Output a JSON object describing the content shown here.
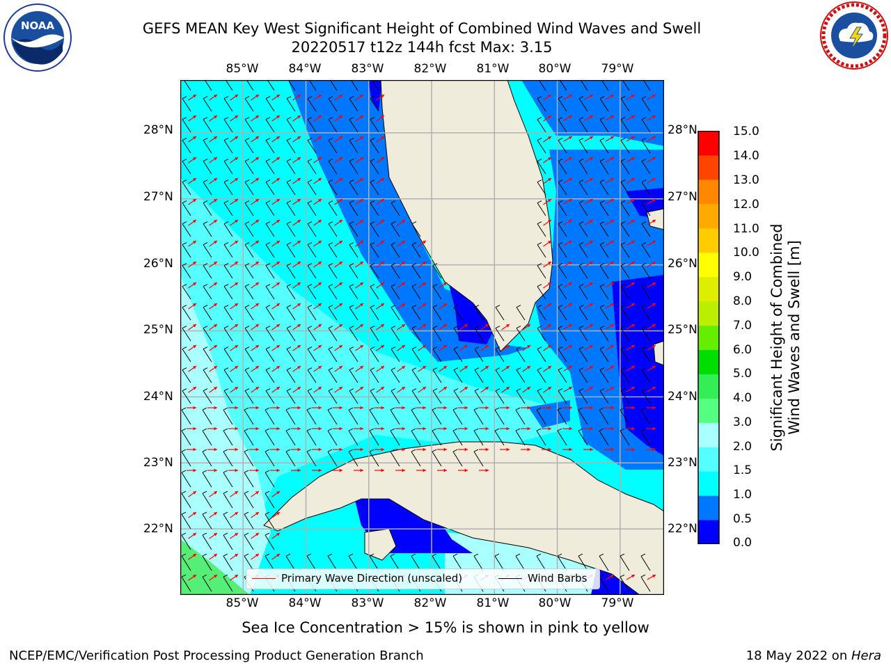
{
  "header": {
    "title_line1": "GEFS MEAN Key West Significant Height of Combined Wind Waves and Swell",
    "title_line2": "20220517 t12z 144h fcst   Max: 3.15"
  },
  "logos": {
    "left": {
      "name": "noaa-logo",
      "text": "NOAA",
      "ring_text": "NATIONAL OCEANIC AND ATMOSPHERIC ADMINISTRATION · U.S. DEPARTMENT OF COMMERCE"
    },
    "right": {
      "name": "nws-logo",
      "ring_text": "NATIONAL WEATHER SERVICE"
    }
  },
  "map": {
    "longitude_labels": [
      "85°W",
      "84°W",
      "83°W",
      "82°W",
      "81°W",
      "80°W",
      "79°W"
    ],
    "latitude_labels": [
      "28°N",
      "27°N",
      "26°N",
      "25°N",
      "24°N",
      "23°N",
      "22°N"
    ],
    "lon_range": [
      -86.0,
      -78.3
    ],
    "lat_range": [
      21.0,
      28.8
    ],
    "colors": {
      "land": "#efecdc",
      "coastline": "#000000",
      "gridlines": "#b0b0b0",
      "wave_arrow": "#ff0000",
      "wind_barb": "#000000"
    },
    "legend": {
      "wave_label": "Primary Wave Direction (unscaled)",
      "wind_label": "Wind Barbs",
      "wave_color": "#ff0000",
      "wind_color": "#000000"
    }
  },
  "colorbar": {
    "label_line1": "Significant Height of Combined",
    "label_line2": "Wind Waves and Swell [m]",
    "ticks": [
      "15.0",
      "14.0",
      "13.0",
      "12.0",
      "11.0",
      "10.0",
      "9.0",
      "8.0",
      "7.0",
      "6.0",
      "5.0",
      "4.0",
      "3.0",
      "2.0",
      "1.5",
      "1.0",
      "0.5",
      "0.0"
    ],
    "bins": [
      {
        "from": 0.0,
        "to": 0.5,
        "color": "#0000ff"
      },
      {
        "from": 0.5,
        "to": 1.0,
        "color": "#0077ff"
      },
      {
        "from": 1.0,
        "to": 1.5,
        "color": "#00ffff"
      },
      {
        "from": 1.5,
        "to": 2.0,
        "color": "#55ffff"
      },
      {
        "from": 2.0,
        "to": 3.0,
        "color": "#aaffff"
      },
      {
        "from": 3.0,
        "to": 4.0,
        "color": "#55ff80"
      },
      {
        "from": 4.0,
        "to": 5.0,
        "color": "#33ee55"
      },
      {
        "from": 5.0,
        "to": 6.0,
        "color": "#00dd00"
      },
      {
        "from": 6.0,
        "to": 7.0,
        "color": "#66ee00"
      },
      {
        "from": 7.0,
        "to": 8.0,
        "color": "#bbee00"
      },
      {
        "from": 8.0,
        "to": 9.0,
        "color": "#ddee00"
      },
      {
        "from": 9.0,
        "to": 10.0,
        "color": "#ffff00"
      },
      {
        "from": 10.0,
        "to": 11.0,
        "color": "#ffcc00"
      },
      {
        "from": 11.0,
        "to": 12.0,
        "color": "#ffaa00"
      },
      {
        "from": 12.0,
        "to": 13.0,
        "color": "#ff8800"
      },
      {
        "from": 13.0,
        "to": 14.0,
        "color": "#ff4400"
      },
      {
        "from": 14.0,
        "to": 15.0,
        "color": "#ff0000"
      }
    ]
  },
  "caption": "Sea Ice Concentration > 15% is shown in pink to yellow",
  "footer": {
    "left": "NCEP/EMC/Verification Post Processing Product Generation Branch",
    "right_date": "18 May 2022 on ",
    "right_host": "Hera"
  }
}
